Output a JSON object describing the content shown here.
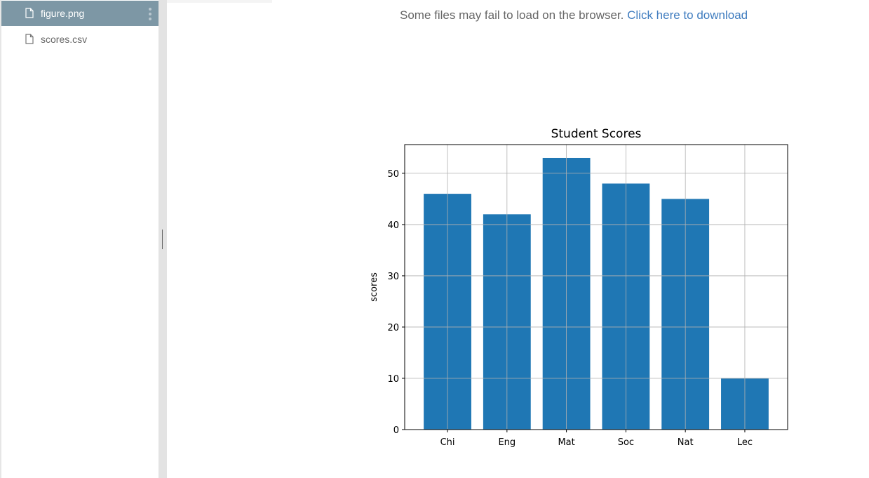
{
  "sidebar": {
    "files": [
      {
        "name": "figure.png",
        "active": true
      },
      {
        "name": "scores.csv",
        "active": false
      }
    ]
  },
  "viewer": {
    "notice_text": "Some files may fail to load on the browser.",
    "download_link": "Click here to download"
  },
  "colors": {
    "bar": "#1f77b4",
    "active_item_bg": "#7d97a5",
    "link": "#3f7cbf"
  },
  "chart_data": {
    "type": "bar",
    "title": "Student Scores",
    "xlabel": "",
    "ylabel": "scores",
    "categories": [
      "Chi",
      "Eng",
      "Mat",
      "Soc",
      "Nat",
      "Lec"
    ],
    "values": [
      46,
      42,
      53,
      48,
      45,
      10
    ],
    "ylim": [
      0,
      55.6
    ],
    "yticks": [
      0,
      10,
      20,
      30,
      40,
      50
    ],
    "grid": true
  }
}
